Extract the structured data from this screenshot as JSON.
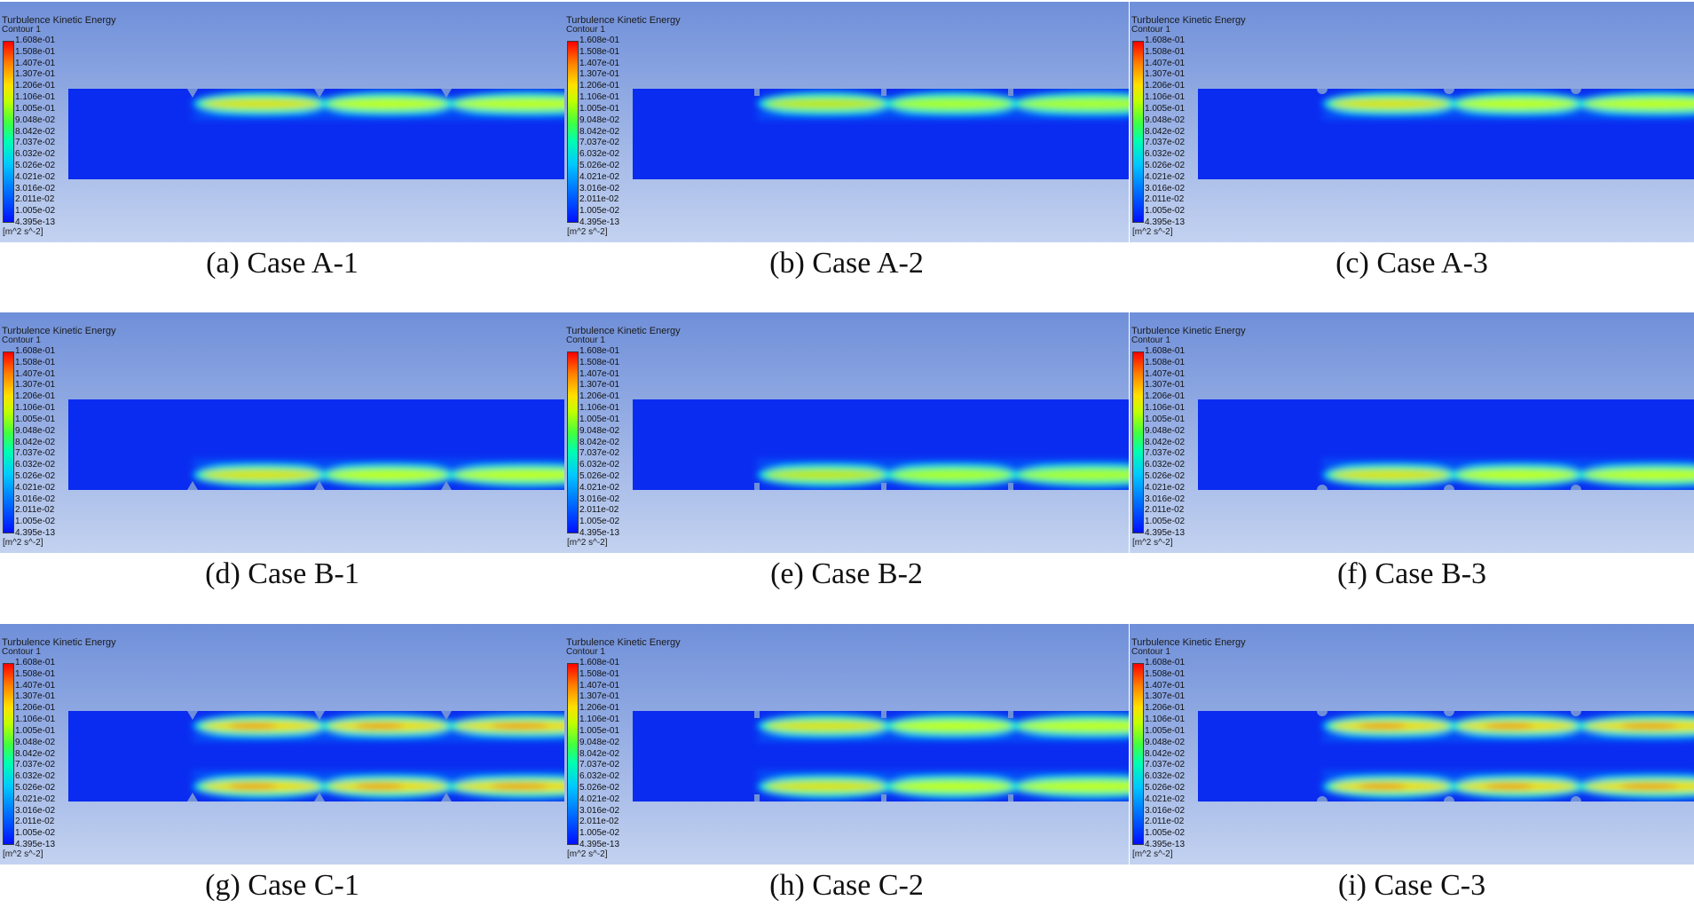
{
  "legend": {
    "title": "Turbulence Kinetic Energy",
    "subtitle": "Contour 1",
    "ticks": [
      "1.608e-01",
      "1.508e-01",
      "1.407e-01",
      "1.307e-01",
      "1.206e-01",
      "1.106e-01",
      "1.005e-01",
      "9.048e-02",
      "8.042e-02",
      "7.037e-02",
      "6.032e-02",
      "5.026e-02",
      "4.021e-02",
      "3.016e-02",
      "2.011e-02",
      "1.005e-02",
      "4.395e-13"
    ],
    "units": "[m^2 s^-2]"
  },
  "colors": {
    "background_top": "#6f8fd9",
    "background_bottom": "#c3d2f0",
    "channel": "#0a2cf0"
  },
  "panels": [
    {
      "caption": "(a) Case A-1",
      "wall": "top",
      "obstacle": "triangle",
      "strength": "medium"
    },
    {
      "caption": "(b) Case A-2",
      "wall": "top",
      "obstacle": "rectangle",
      "strength": "low"
    },
    {
      "caption": "(c) Case A-3",
      "wall": "top",
      "obstacle": "semicircle",
      "strength": "medium"
    },
    {
      "caption": "(d) Case B-1",
      "wall": "bottom",
      "obstacle": "triangle",
      "strength": "medium"
    },
    {
      "caption": "(e) Case B-2",
      "wall": "bottom",
      "obstacle": "rectangle",
      "strength": "low"
    },
    {
      "caption": "(f) Case B-3",
      "wall": "bottom",
      "obstacle": "semicircle",
      "strength": "medium"
    },
    {
      "caption": "(g) Case C-1",
      "wall": "both",
      "obstacle": "triangle",
      "strength": "high"
    },
    {
      "caption": "(h) Case C-2",
      "wall": "both",
      "obstacle": "rectangle",
      "strength": "medium"
    },
    {
      "caption": "(i) Case C-3",
      "wall": "both",
      "obstacle": "semicircle",
      "strength": "high"
    }
  ]
}
